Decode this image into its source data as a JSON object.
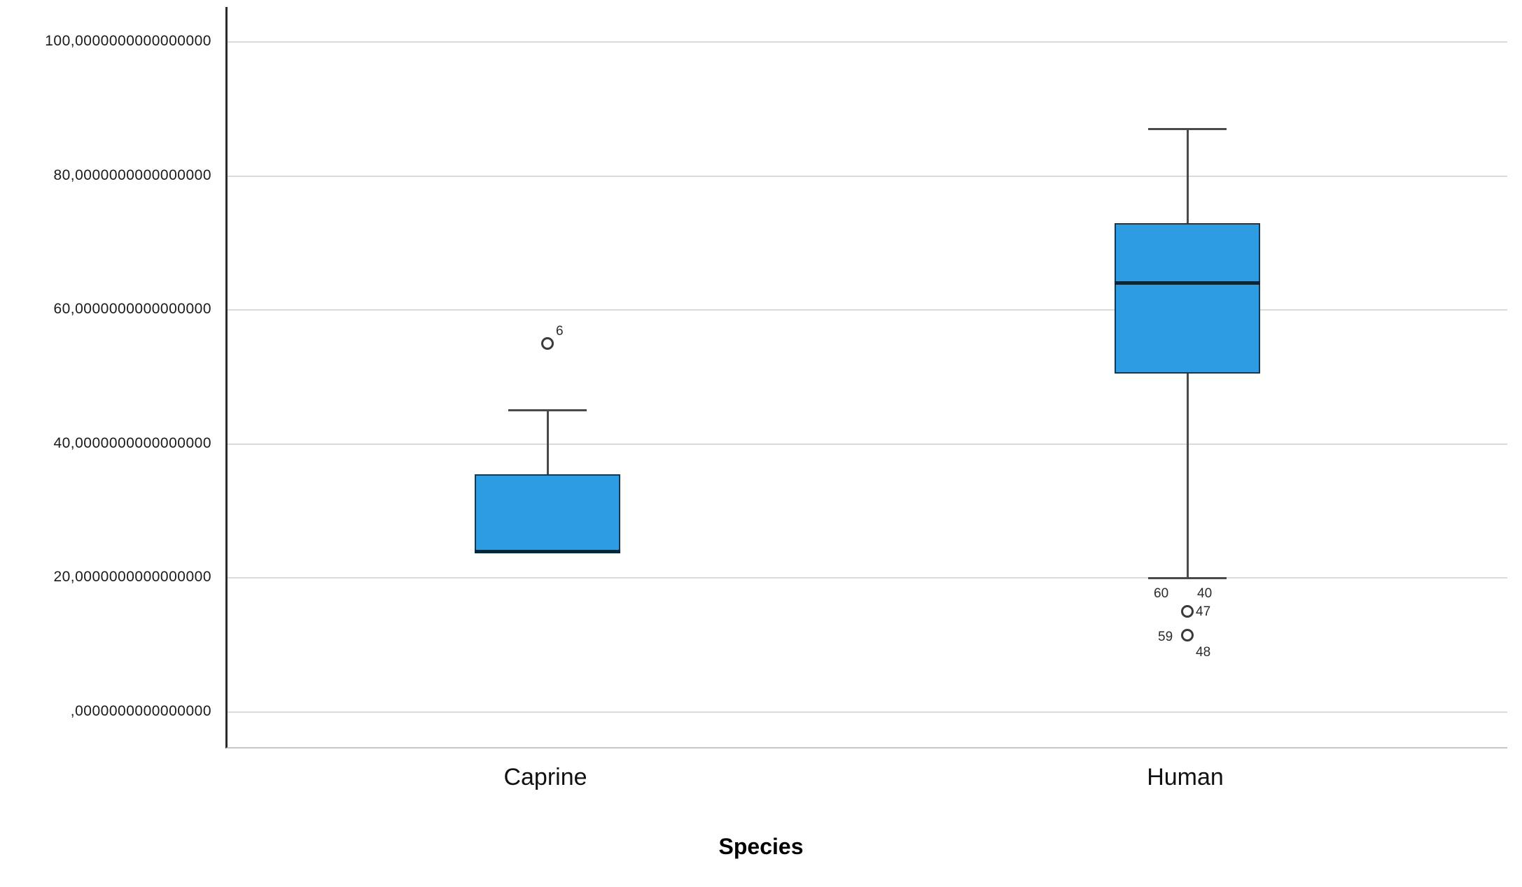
{
  "chart_data": {
    "type": "boxplot",
    "title": "",
    "xlabel": "Species",
    "ylabel": "",
    "categories": [
      "Caprine",
      "Human"
    ],
    "ylim": [
      0,
      100
    ],
    "grid": true,
    "yticks": [
      {
        "value": 0,
        "label": ",0000000000000000"
      },
      {
        "value": 20,
        "label": "20,0000000000000000"
      },
      {
        "value": 40,
        "label": "40,0000000000000000"
      },
      {
        "value": 60,
        "label": "60,0000000000000000"
      },
      {
        "value": 80,
        "label": "80,0000000000000000"
      },
      {
        "value": 100,
        "label": "100,0000000000000000"
      }
    ],
    "colors": {
      "box_fill": "#2D9CE3",
      "box_border": "#123A55",
      "median": "#06263C",
      "whisker": "#4A4A4A",
      "grid": "#DADADA",
      "axis_left": "#2B2B2B",
      "axis_bottom": "#C6C6C6",
      "outlier_stroke": "#3A3A3A"
    },
    "series": [
      {
        "category": "Caprine",
        "q1": 24,
        "median": 24,
        "q3": 35.5,
        "whisker_low": 24,
        "whisker_high": 45,
        "outliers": [
          {
            "value": 55,
            "label": "6",
            "label_position": "above-right"
          }
        ]
      },
      {
        "category": "Human",
        "q1": 50.5,
        "median": 64,
        "q3": 73,
        "whisker_low": 20,
        "whisker_high": 87,
        "outliers": [
          {
            "value": 15,
            "label": "60",
            "label_position": "above-left"
          },
          {
            "value": 15,
            "label": "40",
            "label_position": "above-far-right"
          },
          {
            "value": 15,
            "label": "47",
            "label_position": "right"
          },
          {
            "value": 11.5,
            "label": "59",
            "label_position": "left"
          },
          {
            "value": 11.5,
            "label": "48",
            "label_position": "below-right"
          }
        ]
      }
    ]
  }
}
